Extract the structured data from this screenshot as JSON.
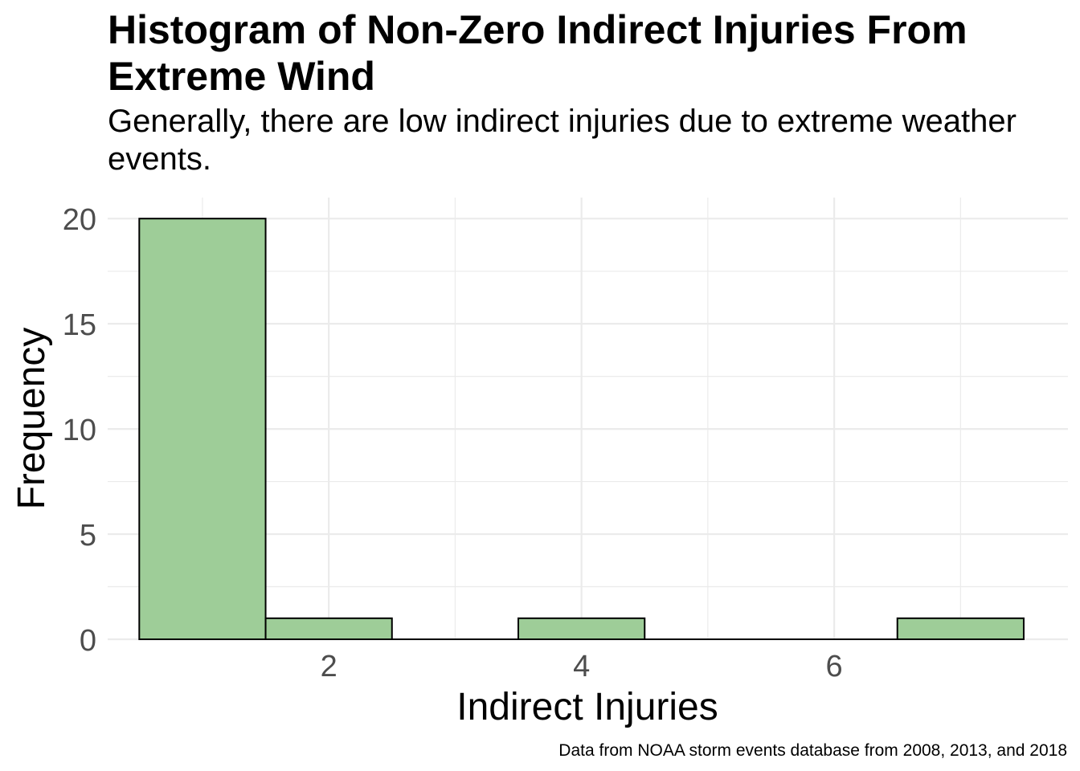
{
  "chart_data": {
    "type": "bar",
    "title": "Histogram of Non-Zero Indirect Injuries From Extreme Wind",
    "subtitle": "Generally, there are low indirect injuries due to extreme weather events.",
    "caption": "Data from NOAA storm events database from 2008, 2013, and 2018",
    "xlabel": "Indirect Injuries",
    "ylabel": "Frequency",
    "xlim": [
      0.25,
      7.85
    ],
    "ylim": [
      0,
      21
    ],
    "x_ticks": [
      2,
      4,
      6
    ],
    "y_ticks": [
      0,
      5,
      10,
      15,
      20
    ],
    "bins": [
      {
        "start": 0.5,
        "end": 1.5,
        "count": 20
      },
      {
        "start": 1.5,
        "end": 2.5,
        "count": 1
      },
      {
        "start": 3.5,
        "end": 4.5,
        "count": 1
      },
      {
        "start": 6.5,
        "end": 7.5,
        "count": 1
      }
    ],
    "grid": true,
    "colors": {
      "fill": "#9ecd98",
      "outline": "#000000",
      "grid": "#ebebeb",
      "tick_text": "#4d4d4d"
    }
  }
}
